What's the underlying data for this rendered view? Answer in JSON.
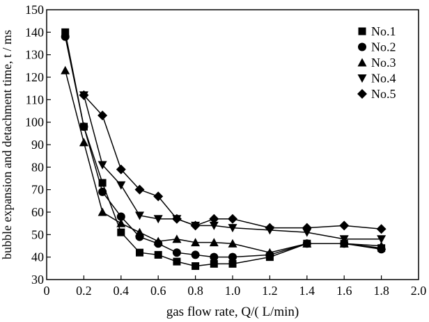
{
  "chart_data": {
    "type": "line",
    "title": "",
    "xlabel": "gas flow rate, Q/( L/min)",
    "ylabel": "bubble expansion and  detachment time, t / ms",
    "xlim": [
      0,
      2.0
    ],
    "ylim": [
      30,
      150
    ],
    "xticks": [
      "0",
      "0.2",
      "0.4",
      "0.6",
      "0.8",
      "1.0",
      "1.2",
      "1.4",
      "1.6",
      "1.8",
      "2.0"
    ],
    "yticks": [
      "30",
      "40",
      "50",
      "60",
      "70",
      "80",
      "90",
      "100",
      "110",
      "120",
      "130",
      "140",
      "150"
    ],
    "grid": false,
    "legend_position": "top-right",
    "series": [
      {
        "name": "No.1",
        "marker": "square",
        "x": [
          0.1,
          0.2,
          0.3,
          0.4,
          0.5,
          0.6,
          0.7,
          0.8,
          0.9,
          1.0,
          1.2,
          1.4,
          1.6,
          1.8
        ],
        "y": [
          140,
          98,
          73,
          51,
          42,
          41,
          38,
          36,
          37,
          37,
          40,
          46,
          46,
          44
        ]
      },
      {
        "name": "No.2",
        "marker": "circle",
        "x": [
          0.1,
          0.2,
          0.3,
          0.4,
          0.5,
          0.6,
          0.7,
          0.8,
          0.9,
          1.0,
          1.2,
          1.4,
          1.6,
          1.8
        ],
        "y": [
          138,
          98,
          69,
          58,
          49,
          46,
          42,
          41,
          40,
          40,
          41,
          46,
          46,
          43.5
        ]
      },
      {
        "name": "No.3",
        "marker": "triangle-up",
        "x": [
          0.1,
          0.2,
          0.3,
          0.4,
          0.5,
          0.6,
          0.7,
          0.8,
          0.9,
          1.0,
          1.2,
          1.4,
          1.6,
          1.8
        ],
        "y": [
          123,
          91,
          60,
          55,
          51,
          47,
          48,
          46.5,
          46.5,
          46,
          42,
          46,
          46,
          45
        ]
      },
      {
        "name": "No.4",
        "marker": "triangle-down",
        "x": [
          0.2,
          0.3,
          0.4,
          0.5,
          0.6,
          0.7,
          0.8,
          0.9,
          1.0,
          1.2,
          1.4,
          1.6,
          1.8
        ],
        "y": [
          112,
          81,
          72,
          58.5,
          57,
          57,
          54,
          54,
          53,
          52,
          51,
          48,
          48
        ]
      },
      {
        "name": "No.5",
        "marker": "diamond",
        "x": [
          0.2,
          0.3,
          0.4,
          0.5,
          0.6,
          0.7,
          0.8,
          0.9,
          1.0,
          1.2,
          1.4,
          1.6,
          1.8
        ],
        "y": [
          112,
          103,
          79,
          70,
          67,
          57,
          54,
          57,
          57,
          53,
          53,
          54,
          52.5
        ]
      }
    ]
  }
}
